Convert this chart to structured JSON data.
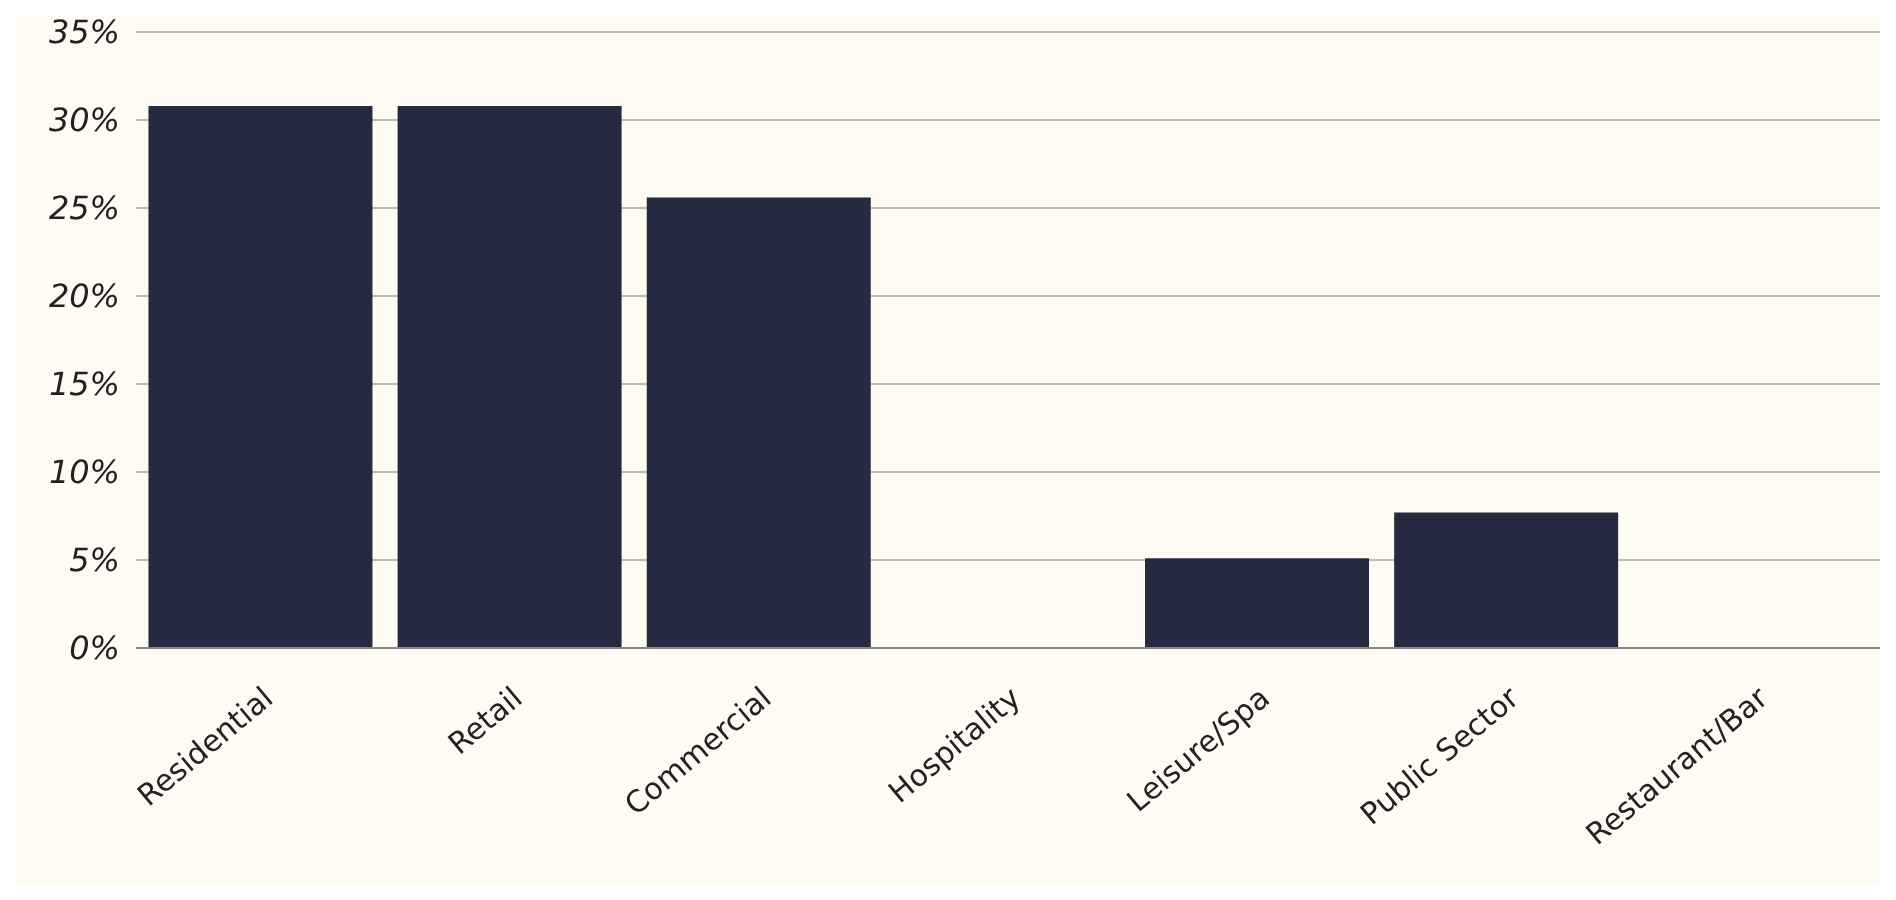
{
  "chart_data": {
    "type": "bar",
    "categories": [
      "Residential",
      "Retail",
      "Commercial",
      "Hospitality",
      "Leisure/Spa",
      "Public Sector",
      "Restaurant/Bar"
    ],
    "values": [
      30.8,
      30.8,
      25.6,
      0,
      5.1,
      7.7,
      0
    ],
    "color": "#262a40",
    "ylim": [
      0,
      35
    ],
    "yticks": [
      {
        "value": 0,
        "label": "0%"
      },
      {
        "value": 5,
        "label": "5%"
      },
      {
        "value": 10,
        "label": "10%"
      },
      {
        "value": 15,
        "label": "15%"
      },
      {
        "value": 20,
        "label": "20%"
      },
      {
        "value": 25,
        "label": "25%"
      },
      {
        "value": 30,
        "label": "30%"
      },
      {
        "value": 35,
        "label": "35%"
      }
    ],
    "grid": "y",
    "legend": false
  }
}
